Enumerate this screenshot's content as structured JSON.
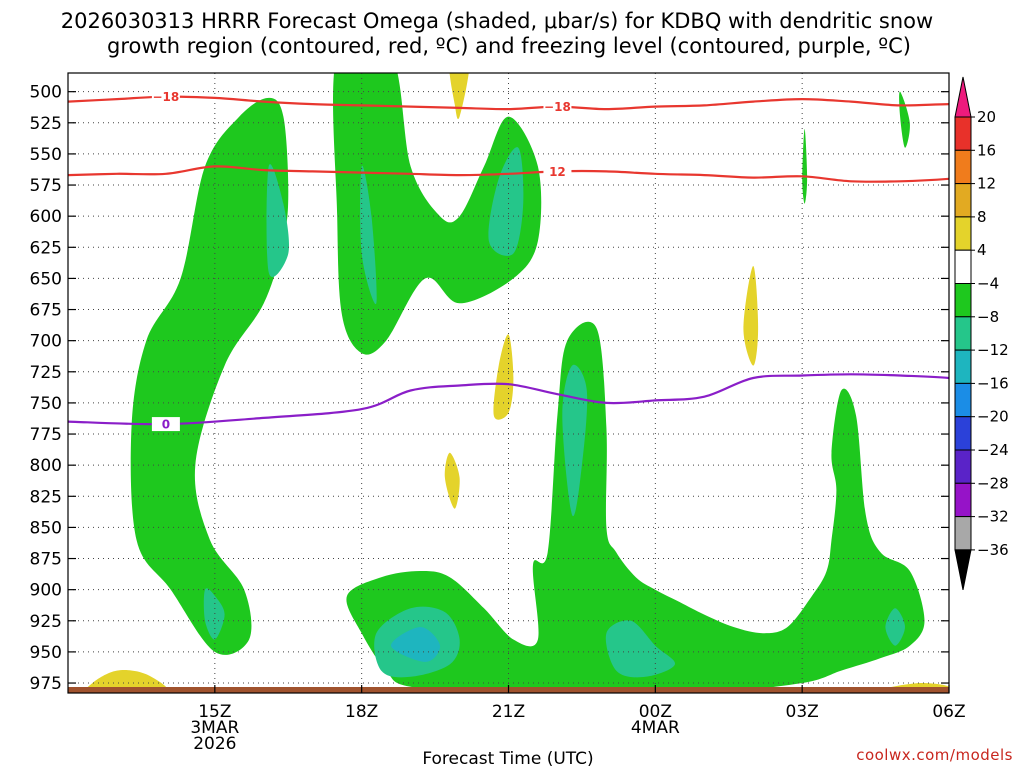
{
  "chart_data": {
    "type": "contour",
    "title_line1": "2026030313 HRRR Forecast Omega (shaded, μbar/s) for KDBQ with dendritic snow",
    "title_line2": "growth region (contoured, red, ºC) and freezing level (contoured, purple, ºC)",
    "xlabel": "Forecast Time (UTC)",
    "credit": "coolwx.com/models",
    "y_axis": {
      "unit": "hPa",
      "range": [
        983,
        485
      ],
      "ticks": [
        500,
        525,
        550,
        575,
        600,
        625,
        650,
        675,
        700,
        725,
        750,
        775,
        800,
        825,
        850,
        875,
        900,
        925,
        950,
        975
      ]
    },
    "x_axis": {
      "unit": "forecast hour",
      "range": [
        -1,
        17
      ],
      "ticks": [
        {
          "hour": 2,
          "lines": [
            "15Z",
            "3MAR",
            "2026"
          ]
        },
        {
          "hour": 5,
          "lines": [
            "18Z"
          ]
        },
        {
          "hour": 8,
          "lines": [
            "21Z"
          ]
        },
        {
          "hour": 11,
          "lines": [
            "00Z",
            "4MAR"
          ]
        },
        {
          "hour": 14,
          "lines": [
            "03Z"
          ]
        },
        {
          "hour": 17,
          "lines": [
            "06Z"
          ]
        }
      ]
    },
    "colorbar": {
      "labels": [
        "20",
        "16",
        "12",
        "8",
        "4",
        "−4",
        "−8",
        "−12",
        "−16",
        "−20",
        "−24",
        "−28",
        "−32",
        "−36"
      ],
      "colors": [
        "#ee1b7d",
        "#e8312a",
        "#f07c1c",
        "#e2aa22",
        "#e4d32b",
        "#ffffff",
        "#1ec81e",
        "#25c68a",
        "#1eb5bf",
        "#1b8de6",
        "#2b41d9",
        "#5a23c8",
        "#9613c8",
        "#a8a8a8",
        "#000000"
      ]
    },
    "red_contours": [
      {
        "label": "−18",
        "points": [
          [
            -1,
            508
          ],
          [
            0,
            506
          ],
          [
            1,
            504
          ],
          [
            2,
            505
          ],
          [
            3,
            508
          ],
          [
            4,
            510
          ],
          [
            5,
            511
          ],
          [
            6,
            512
          ],
          [
            7,
            513
          ],
          [
            8,
            514
          ],
          [
            9,
            512
          ],
          [
            10,
            514
          ],
          [
            11,
            512
          ],
          [
            12,
            511
          ],
          [
            13,
            508
          ],
          [
            14,
            506
          ],
          [
            15,
            508
          ],
          [
            16,
            511
          ],
          [
            17,
            510
          ],
          [
            18,
            510
          ]
        ]
      },
      {
        "label": "12",
        "points": [
          [
            -1,
            567
          ],
          [
            0,
            566
          ],
          [
            1,
            566
          ],
          [
            2,
            560
          ],
          [
            3,
            563
          ],
          [
            4,
            564
          ],
          [
            5,
            565
          ],
          [
            6,
            566
          ],
          [
            7,
            567
          ],
          [
            8,
            566
          ],
          [
            9,
            564
          ],
          [
            10,
            564
          ],
          [
            11,
            566
          ],
          [
            12,
            567
          ],
          [
            13,
            569
          ],
          [
            14,
            568
          ],
          [
            15,
            572
          ],
          [
            16,
            572
          ],
          [
            17,
            570
          ],
          [
            18,
            566
          ]
        ]
      }
    ],
    "purple_contours": [
      {
        "label": "0",
        "points": [
          [
            -1,
            765
          ],
          [
            1,
            767
          ],
          [
            3,
            762
          ],
          [
            5,
            755
          ],
          [
            6,
            740
          ],
          [
            7,
            736
          ],
          [
            8,
            735
          ],
          [
            9,
            743
          ],
          [
            10,
            750
          ],
          [
            11,
            748
          ],
          [
            12,
            745
          ],
          [
            13,
            730
          ],
          [
            14,
            728
          ],
          [
            15,
            727
          ],
          [
            16,
            728
          ],
          [
            17,
            730
          ],
          [
            18,
            735
          ]
        ]
      }
    ],
    "omega_regions": [
      {
        "level": "-8",
        "points": [
          [
            0.3,
            768
          ],
          [
            0.6,
            700
          ],
          [
            1.3,
            650
          ],
          [
            1.8,
            560
          ],
          [
            2.5,
            520
          ],
          [
            3.1,
            505
          ],
          [
            3.4,
            520
          ],
          [
            3.5,
            580
          ],
          [
            3.4,
            620
          ],
          [
            3.0,
            670
          ],
          [
            2.2,
            720
          ],
          [
            1.6,
            800
          ],
          [
            1.9,
            860
          ],
          [
            2.6,
            900
          ],
          [
            2.7,
            940
          ],
          [
            2.0,
            950
          ],
          [
            1.1,
            900
          ],
          [
            0.4,
            860
          ]
        ]
      },
      {
        "level": "-8",
        "points": [
          [
            4.5,
            470
          ],
          [
            5.6,
            470
          ],
          [
            6.0,
            560
          ],
          [
            6.6,
            600
          ],
          [
            7.0,
            600
          ],
          [
            7.5,
            560
          ],
          [
            8.0,
            520
          ],
          [
            8.6,
            560
          ],
          [
            8.6,
            620
          ],
          [
            8.1,
            650
          ],
          [
            7.0,
            670
          ],
          [
            6.3,
            650
          ],
          [
            5.5,
            700
          ],
          [
            5.0,
            710
          ],
          [
            4.6,
            680
          ],
          [
            4.5,
            600
          ]
        ]
      },
      {
        "level": "-8",
        "points": [
          [
            4.7,
            905
          ],
          [
            5.4,
            890
          ],
          [
            6.2,
            885
          ],
          [
            6.8,
            890
          ],
          [
            7.5,
            915
          ],
          [
            8.1,
            940
          ],
          [
            8.6,
            940
          ],
          [
            8.5,
            880
          ],
          [
            8.8,
            870
          ],
          [
            9.0,
            760
          ],
          [
            9.2,
            700
          ],
          [
            9.8,
            690
          ],
          [
            10.0,
            770
          ],
          [
            10.0,
            850
          ],
          [
            10.2,
            870
          ],
          [
            10.6,
            890
          ],
          [
            11.0,
            900
          ],
          [
            11.5,
            910
          ],
          [
            12.0,
            920
          ],
          [
            12.6,
            930
          ],
          [
            13.2,
            935
          ],
          [
            13.7,
            930
          ],
          [
            14.2,
            905
          ],
          [
            14.5,
            885
          ],
          [
            14.6,
            860
          ],
          [
            14.7,
            820
          ],
          [
            14.6,
            790
          ],
          [
            14.8,
            740
          ],
          [
            15.1,
            760
          ],
          [
            15.3,
            840
          ],
          [
            15.6,
            870
          ],
          [
            16.2,
            885
          ],
          [
            16.5,
            925
          ],
          [
            16.2,
            945
          ],
          [
            15.6,
            955
          ],
          [
            14.8,
            965
          ],
          [
            14.0,
            975
          ],
          [
            12.0,
            983
          ],
          [
            10.0,
            983
          ],
          [
            9.0,
            983
          ],
          [
            8.0,
            983
          ],
          [
            6.0,
            978
          ],
          [
            5.5,
            965
          ],
          [
            5.0,
            935
          ]
        ]
      },
      {
        "level": "-8",
        "points": [
          [
            3.2,
            515
          ],
          [
            3.0,
            540
          ],
          [
            3.2,
            560
          ],
          [
            3.4,
            535
          ]
        ]
      },
      {
        "level": "-12",
        "points": [
          [
            3.1,
            645
          ],
          [
            3.1,
            560
          ],
          [
            3.4,
            590
          ],
          [
            3.5,
            630
          ]
        ]
      },
      {
        "level": "-12",
        "points": [
          [
            5.0,
            630
          ],
          [
            5.0,
            560
          ],
          [
            5.2,
            600
          ],
          [
            5.3,
            670
          ]
        ]
      },
      {
        "level": "-12",
        "points": [
          [
            7.6,
            620
          ],
          [
            7.8,
            570
          ],
          [
            8.2,
            545
          ],
          [
            8.3,
            590
          ],
          [
            8.1,
            630
          ]
        ]
      },
      {
        "level": "-12",
        "points": [
          [
            9.1,
            760
          ],
          [
            9.3,
            720
          ],
          [
            9.6,
            740
          ],
          [
            9.5,
            800
          ],
          [
            9.3,
            840
          ]
        ]
      },
      {
        "level": "-12",
        "points": [
          [
            1.8,
            900
          ],
          [
            2.0,
            905
          ],
          [
            2.2,
            920
          ],
          [
            2.0,
            940
          ],
          [
            1.8,
            925
          ]
        ]
      },
      {
        "level": "-12",
        "points": [
          [
            5.3,
            935
          ],
          [
            6.0,
            915
          ],
          [
            6.7,
            918
          ],
          [
            7.0,
            940
          ],
          [
            6.8,
            960
          ],
          [
            6.0,
            970
          ],
          [
            5.4,
            965
          ]
        ]
      },
      {
        "level": "-16",
        "points": [
          [
            5.6,
            945
          ],
          [
            6.2,
            930
          ],
          [
            6.6,
            945
          ],
          [
            6.3,
            958
          ]
        ]
      },
      {
        "level": "-12",
        "points": [
          [
            10.0,
            935
          ],
          [
            10.5,
            925
          ],
          [
            11.0,
            945
          ],
          [
            11.4,
            960
          ],
          [
            10.8,
            970
          ],
          [
            10.2,
            965
          ]
        ]
      },
      {
        "level": "-12",
        "points": [
          [
            15.7,
            930
          ],
          [
            15.9,
            915
          ],
          [
            16.1,
            930
          ],
          [
            15.9,
            945
          ]
        ]
      },
      {
        "level": "-8",
        "points": [
          [
            14.0,
            570
          ],
          [
            14.05,
            530
          ],
          [
            14.1,
            570
          ],
          [
            14.05,
            590
          ]
        ]
      },
      {
        "level": "-8",
        "points": [
          [
            16.0,
            520
          ],
          [
            16.0,
            500
          ],
          [
            16.2,
            525
          ],
          [
            16.1,
            545
          ]
        ]
      },
      {
        "level": "4",
        "points": [
          [
            6.8,
            475
          ],
          [
            7.2,
            475
          ],
          [
            7.0,
            520
          ],
          [
            6.9,
            510
          ]
        ]
      },
      {
        "level": "4",
        "points": [
          [
            7.7,
            760
          ],
          [
            7.8,
            720
          ],
          [
            8.0,
            695
          ],
          [
            8.1,
            730
          ],
          [
            8.0,
            758
          ]
        ]
      },
      {
        "level": "4",
        "points": [
          [
            6.7,
            810
          ],
          [
            6.8,
            790
          ],
          [
            7.0,
            810
          ],
          [
            6.9,
            835
          ]
        ]
      },
      {
        "level": "4",
        "points": [
          [
            12.8,
            690
          ],
          [
            13.0,
            640
          ],
          [
            13.1,
            690
          ],
          [
            13.0,
            720
          ]
        ]
      },
      {
        "level": "4",
        "points": [
          [
            -0.5,
            975
          ],
          [
            0,
            965
          ],
          [
            0.6,
            968
          ],
          [
            1.0,
            983
          ],
          [
            -0.5,
            983
          ]
        ]
      },
      {
        "level": "4",
        "points": [
          [
            15.6,
            980
          ],
          [
            16.4,
            975
          ],
          [
            17.0,
            978
          ],
          [
            16.5,
            983
          ],
          [
            15.6,
            983
          ]
        ]
      }
    ],
    "surface_color": "#a0522d"
  }
}
